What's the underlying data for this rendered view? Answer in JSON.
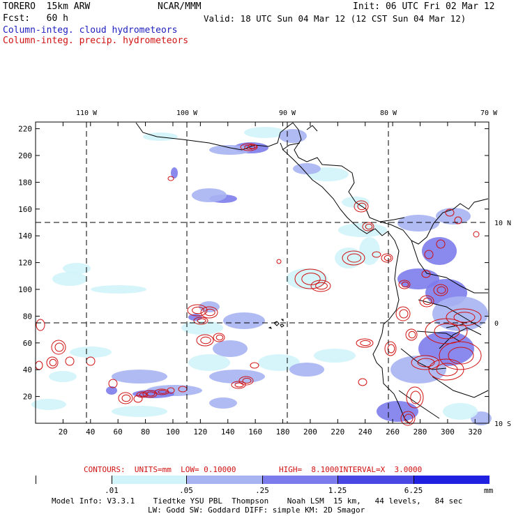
{
  "header": {
    "model_title": "TORERO  15km ARW",
    "institution": "NCAR/MMM",
    "init_label": "Init: 06 UTC Fri 02 Mar 12",
    "fcst_label": "Fcst:   60 h",
    "valid_label": "Valid: 18 UTC Sun 04 Mar 12 (12 CST Sun 04 Mar 12)",
    "field_cloud": "Column-integ. cloud hydrometeors",
    "field_precip": "Column-integ. precip. hydrometeors"
  },
  "map": {
    "top_lon_labels": [
      "110 W",
      "100 W",
      "90 W",
      "80 W",
      "70 W"
    ],
    "right_lat_labels": [
      "10 N",
      "0",
      "10 S"
    ],
    "y_ticks": [
      "220",
      "200",
      "180",
      "160",
      "140",
      "120",
      "100",
      "80",
      "60",
      "40",
      "20"
    ],
    "x_ticks": [
      "20",
      "40",
      "60",
      "80",
      "100",
      "120",
      "140",
      "160",
      "180",
      "200",
      "220",
      "240",
      "260",
      "280",
      "300",
      "320"
    ],
    "grid_cells_x": 330,
    "grid_cells_y": 225
  },
  "contour_info": {
    "units_label": "CONTOURS:  UNITS=mm  LOW= 0.10000",
    "high_label": "HIGH=  8.1000",
    "interval_label": "INTERVAL=X  3.0000"
  },
  "legend": {
    "thresholds": [
      ".01",
      ".05",
      ".25",
      "1.25",
      "6.25"
    ],
    "units": "mm",
    "colors": [
      "#ffffff",
      "#d0f4fa",
      "#a8b4f2",
      "#7c7cec",
      "#4a48e4",
      "#2020e0"
    ]
  },
  "footer": {
    "line1": "Model Info: V3.3.1    Tiedtke YSU PBL  Thompson    Noah LSM  15 km,   44 levels,   84 sec",
    "line2": "LW: Godd SW: Goddard DIFF: simple KM: 2D Smagor"
  },
  "colors": {
    "cloud_text": "#2020c0",
    "precip_contour": "#d01010",
    "coast": "#000000"
  }
}
